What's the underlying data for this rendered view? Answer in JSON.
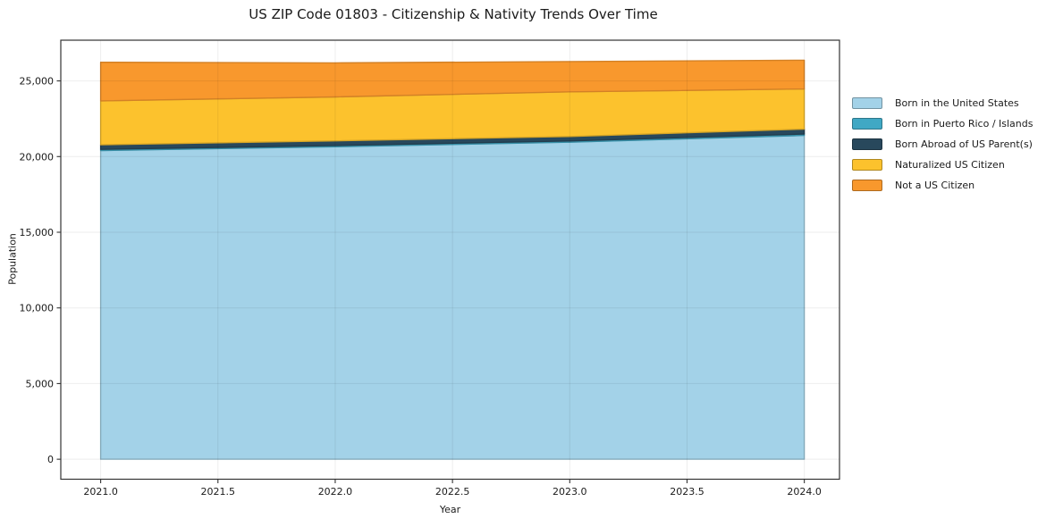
{
  "chart_data": {
    "type": "area",
    "stacked": true,
    "title": "US ZIP Code 01803 - Citizenship & Nativity Trends Over Time",
    "xlabel": "Year",
    "ylabel": "Population",
    "x": [
      2021,
      2022,
      2023,
      2024
    ],
    "series": [
      {
        "name": "Born in the United States",
        "color": "#a3d2e8",
        "values": [
          20400,
          20650,
          20950,
          21400
        ]
      },
      {
        "name": "Born in Puerto Rico / Islands",
        "color": "#40a8c4",
        "values": [
          80,
          80,
          80,
          90
        ]
      },
      {
        "name": "Born Abroad of US Parent(s)",
        "color": "#28485c",
        "values": [
          300,
          310,
          300,
          330
        ]
      },
      {
        "name": "Naturalized US Citizen",
        "color": "#fcc22d",
        "values": [
          2900,
          2900,
          2950,
          2650
        ]
      },
      {
        "name": "Not a US Citizen",
        "color": "#f8982d",
        "values": [
          2550,
          2250,
          2000,
          1900
        ]
      }
    ],
    "xlim": [
      2020.83,
      2024.15
    ],
    "ylim": [
      -1320,
      27690
    ],
    "xticks": {
      "values": [
        2021,
        2021.5,
        2022,
        2022.5,
        2023,
        2023.5,
        2024
      ],
      "labels": [
        "2021.0",
        "2021.5",
        "2022.0",
        "2022.5",
        "2023.0",
        "2023.5",
        "2024.0"
      ]
    },
    "yticks": {
      "values": [
        0,
        5000,
        10000,
        15000,
        20000,
        25000
      ],
      "labels": [
        "0",
        "5,000",
        "10,000",
        "15,000",
        "20,000",
        "25,000"
      ]
    },
    "grid": true,
    "legend_position": "right"
  },
  "colors": {
    "background": "#ffffff",
    "spine": "#333333",
    "grid": "rgba(0,0,0,0.07)",
    "tick_text": "#1a1a1a",
    "title_text": "#1a1a1a"
  }
}
